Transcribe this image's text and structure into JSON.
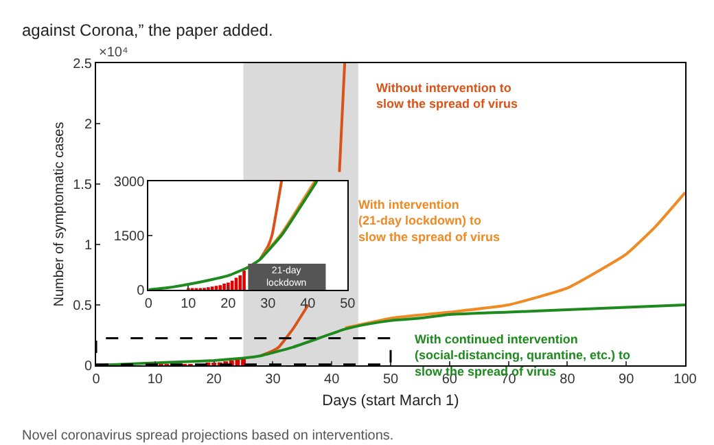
{
  "chart_data": [
    {
      "type": "line",
      "xlabel": "Days (start March 1)",
      "ylabel": "Number of symptomatic cases",
      "annotations": [
        "×10⁴",
        "against Corona,” the paper added.",
        "Novel coronavirus spread projections based on interventions."
      ],
      "xlim": [
        0,
        100
      ],
      "xticks": [
        0,
        10,
        20,
        30,
        40,
        50,
        60,
        70,
        80,
        90,
        100
      ],
      "ylim": [
        0,
        2.5
      ],
      "yticks": [
        0,
        0.5,
        1,
        1.5,
        2,
        2.5
      ],
      "grid": false,
      "legend": false,
      "bands": [
        {
          "axis": "x",
          "from": 25,
          "to": 44.5,
          "color": "#555555"
        }
      ],
      "series": [
        {
          "type": "bar",
          "color": "#e00000",
          "x": [
            10,
            11,
            12,
            13,
            14,
            15,
            16,
            17,
            18,
            19,
            20,
            21,
            22,
            23,
            24,
            25
          ],
          "values": [
            0.002,
            0.003,
            0.003,
            0.004,
            0.005,
            0.007,
            0.009,
            null,
            null,
            0.017,
            0.02,
            0.025,
            0.033,
            0.04,
            0.053,
            0.06
          ]
        },
        {
          "name": "Without intervention to\nslow the spread of virus",
          "color": "#d95319",
          "x": [
            28,
            30,
            31,
            33.4,
            36,
            38,
            40,
            41.3,
            42.2
          ],
          "values": [
            0.08,
            0.12,
            0.15,
            0.3,
            0.5,
            null,
            null,
            1.6,
            2.5
          ]
        },
        {
          "name": "With intervention\n(21-day lockdown) to\nslow the spread of virus",
          "color": "#f08a24",
          "x": [
            42.3,
            50,
            60,
            70,
            80,
            90,
            95,
            100
          ],
          "values": [
            0.31,
            0.39,
            0.44,
            0.5,
            0.64,
            0.92,
            1.15,
            1.43
          ]
        },
        {
          "name": "With continued intervention\n(social-distancing, qurantine, etc.) to\nslow the spread of virus",
          "color": "#1e8a1e",
          "x": [
            0,
            5,
            10,
            15,
            20,
            25,
            28,
            33.4,
            42.3,
            46,
            50,
            55,
            60,
            70,
            80,
            90,
            100
          ],
          "values": [
            0,
            0.01,
            0.02,
            0.03,
            0.04,
            0.06,
            0.08,
            0.15,
            0.3,
            0.34,
            0.37,
            0.39,
            0.42,
            0.44,
            0.46,
            0.48,
            0.5
          ]
        }
      ]
    },
    {
      "type": "line",
      "xlim": [
        0,
        50
      ],
      "xticks": [
        0,
        10,
        20,
        30,
        40,
        50
      ],
      "ylim": [
        0,
        3000
      ],
      "yticks": [
        0,
        1500,
        3000
      ],
      "grid": false,
      "legend": false,
      "bands": [
        {
          "axis": "x",
          "from": 25,
          "to": 44.5,
          "color": "#555555",
          "label": "21-day lockdown"
        }
      ],
      "series": [
        {
          "type": "bar",
          "color": "#e00000",
          "x": [
            10,
            11,
            12,
            13,
            14,
            15,
            16,
            17,
            18,
            19,
            20,
            21,
            22,
            23,
            24
          ],
          "values": [
            20,
            30,
            30,
            40,
            50,
            70,
            90,
            110,
            130,
            170,
            200,
            250,
            330,
            400,
            530
          ]
        },
        {
          "color": "#d95319",
          "x": [
            28,
            30,
            31,
            33.4
          ],
          "values": [
            840,
            1200,
            1500,
            3000
          ]
        },
        {
          "color": "#f08a24",
          "x": [
            28,
            33.4,
            41.8
          ],
          "values": [
            840,
            1550,
            3000
          ]
        },
        {
          "color": "#1e8a1e",
          "x": [
            0,
            5,
            10,
            15,
            20,
            25,
            28,
            33.4,
            42.3
          ],
          "values": [
            0,
            60,
            150,
            260,
            390,
            620,
            840,
            1500,
            3000
          ]
        }
      ]
    }
  ]
}
